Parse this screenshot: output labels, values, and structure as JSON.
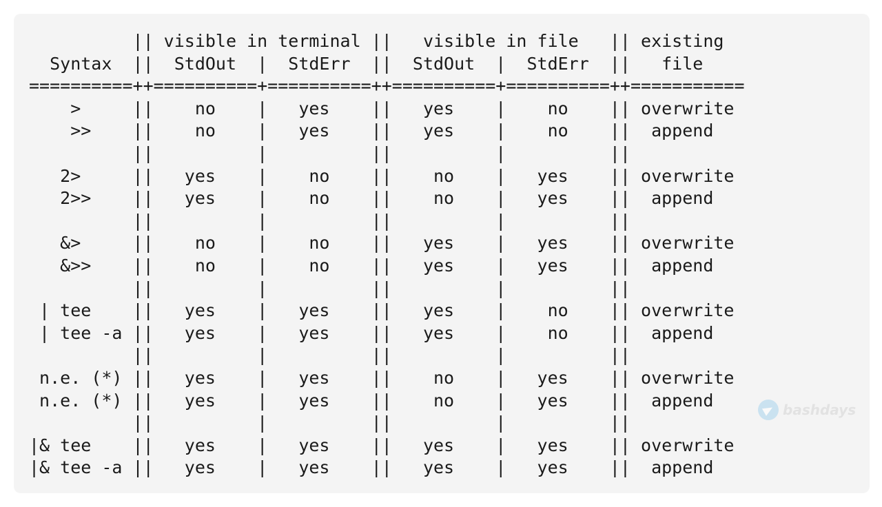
{
  "code_block": {
    "lines": [
      "          || visible in terminal ||   visible in file   || existing",
      "  Syntax  ||  StdOut  |  StdErr  ||  StdOut  |  StdErr  ||   file",
      "==========++==========+==========++==========+==========++===========",
      "    >     ||    no    |   yes    ||   yes    |    no    || overwrite",
      "    >>    ||    no    |   yes    ||   yes    |    no    ||  append",
      "          ||          |          ||          |          ||",
      "   2>     ||   yes    |    no    ||    no    |   yes    || overwrite",
      "   2>>    ||   yes    |    no    ||    no    |   yes    ||  append",
      "          ||          |          ||          |          ||",
      "   &>     ||    no    |    no    ||   yes    |   yes    || overwrite",
      "   &>>    ||    no    |    no    ||   yes    |   yes    ||  append",
      "          ||          |          ||          |          ||",
      " | tee    ||   yes    |   yes    ||   yes    |    no    || overwrite",
      " | tee -a ||   yes    |   yes    ||   yes    |    no    ||  append",
      "          ||          |          ||          |          ||",
      " n.e. (*) ||   yes    |   yes    ||    no    |   yes    || overwrite",
      " n.e. (*) ||   yes    |   yes    ||    no    |   yes    ||  append",
      "          ||          |          ||          |          ||",
      "|& tee    ||   yes    |   yes    ||   yes    |   yes    || overwrite",
      "|& tee -a ||   yes    |   yes    ||   yes    |   yes    ||  append"
    ]
  },
  "watermark": {
    "text": "bashdays",
    "icon": "telegram-icon"
  }
}
